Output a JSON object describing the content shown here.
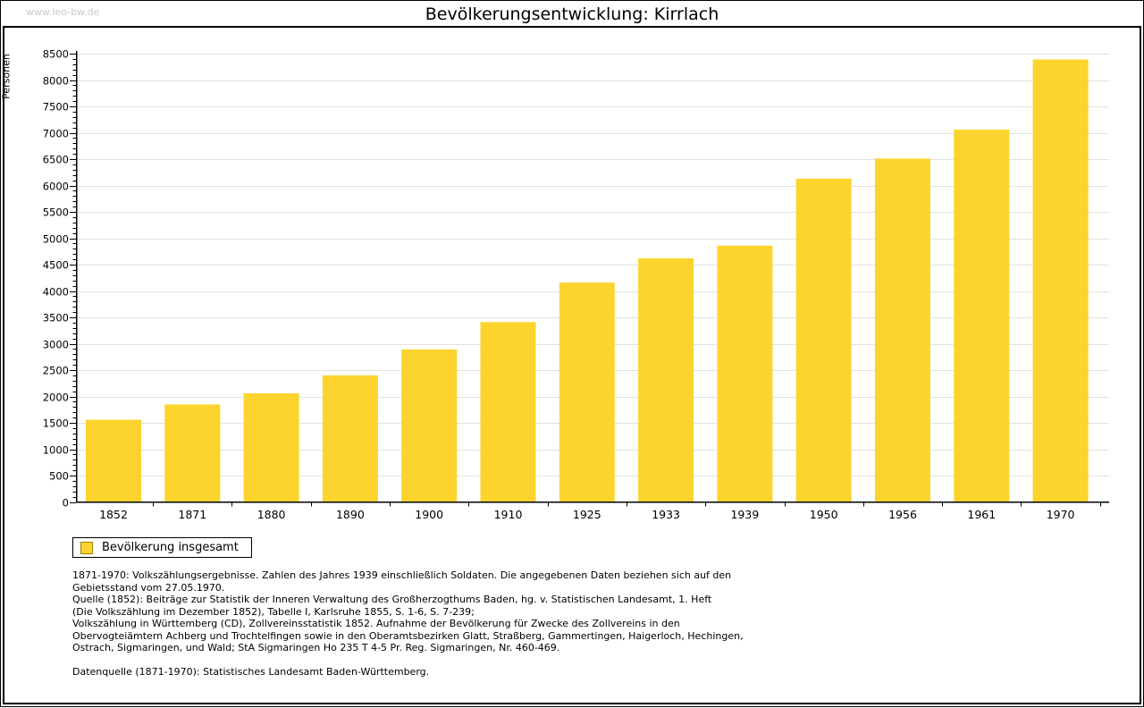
{
  "watermark": "www.leo-bw.de",
  "title": "Bevölkerungsentwicklung: Kirrlach",
  "chart_data": {
    "type": "bar",
    "title": "Bevölkerungsentwicklung: Kirrlach",
    "xlabel": "",
    "ylabel": "Personen",
    "categories": [
      "1852",
      "1871",
      "1880",
      "1890",
      "1900",
      "1910",
      "1925",
      "1933",
      "1939",
      "1950",
      "1956",
      "1961",
      "1970"
    ],
    "series": [
      {
        "name": "Bevölkerung insgesamt",
        "color": "#fcd42d",
        "values": [
          1560,
          1850,
          2060,
          2400,
          2890,
          3410,
          4160,
          4620,
          4860,
          6130,
          6510,
          7060,
          8390
        ]
      }
    ],
    "ylim": [
      0,
      8500
    ],
    "ytick_step": 500,
    "yminor_step": 100,
    "grid": true,
    "gridline_color": "#e1e1e1",
    "legend_position": "bottom-left"
  },
  "legend": {
    "label": "Bevölkerung insgesamt",
    "swatch_color": "#fcd42d",
    "swatch_border_color": "#a08000"
  },
  "footnotes": {
    "lines": [
      "1871-1970: Volkszählungsergebnisse. Zahlen des Jahres 1939 einschließlich Soldaten. Die angegebenen Daten beziehen sich auf den",
      "Gebietsstand vom 27.05.1970.",
      "Quelle (1852): Beiträge zur Statistik der Inneren Verwaltung des Großherzogthums Baden, hg. v. Statistischen Landesamt, 1. Heft",
      "(Die Volkszählung im Dezember 1852), Tabelle I, Karlsruhe 1855, S. 1-6, S. 7-239;",
      "Volkszählung in Württemberg (CD), Zollvereinsstatistik 1852. Aufnahme der Bevölkerung für Zwecke des Zollvereins in den",
      "Obervogteiämtern Achberg und Trochtelfingen sowie in den Oberamtsbezirken Glatt, Straßberg, Gammertingen, Haigerloch, Hechingen,",
      "Ostrach, Sigmaringen, und Wald; StA Sigmaringen Ho 235 T 4-5 Pr. Reg. Sigmaringen, Nr. 460-469."
    ],
    "datasource": "Datenquelle (1871-1970): Statistisches Landesamt Baden-Württemberg."
  }
}
